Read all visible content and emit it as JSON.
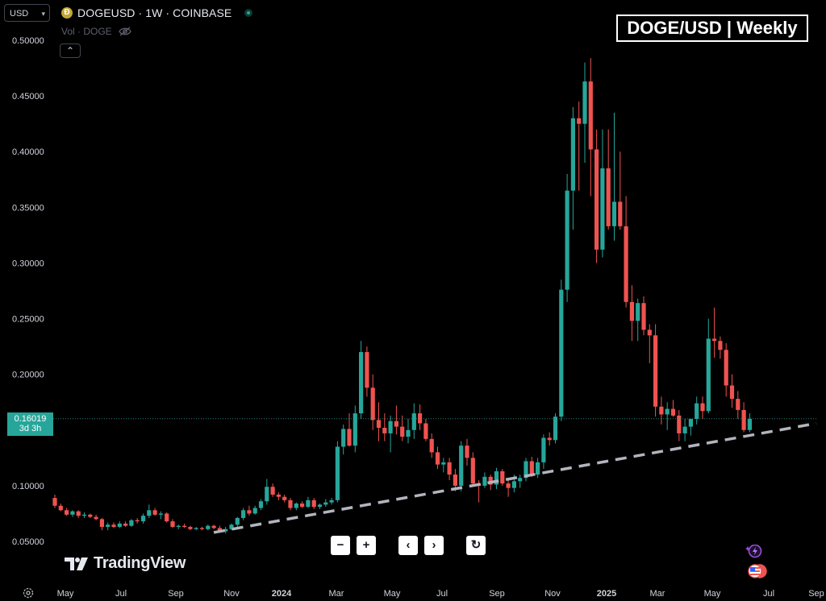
{
  "header": {
    "currency": "USD",
    "symbol_title": "DOGEUSD · 1W · COINBASE",
    "coin_glyph": "Ð",
    "volume_label": "Vol · DOGE",
    "collapse_glyph": "⌃"
  },
  "watermark_title": "DOGE/USD | Weekly",
  "last_price": {
    "price": "0.16019",
    "countdown": "3d 3h"
  },
  "logo_text": "TradingView",
  "controls": {
    "zoom_out": "−",
    "zoom_in": "+",
    "scroll_left": "‹",
    "scroll_right": "›",
    "reset": "↻"
  },
  "colors": {
    "up": "#26a69a",
    "down": "#ef5350",
    "background": "#000000",
    "axis_text": "#d1d4dc",
    "trendline": "#b2b5be"
  },
  "chart_data": {
    "type": "candlestick",
    "interval": "1W",
    "y_tick_labels": [
      "0.05000",
      "0.10000",
      "0.15000",
      "0.20000",
      "0.25000",
      "0.30000",
      "0.35000",
      "0.40000",
      "0.45000",
      "0.50000"
    ],
    "x_tick_labels": [
      "May",
      "Jul",
      "Sep",
      "Nov",
      "2024",
      "Mar",
      "May",
      "Jul",
      "Sep",
      "Nov",
      "2025",
      "Mar",
      "May",
      "Jul",
      "Sep"
    ],
    "ylim": [
      0.03,
      0.51
    ],
    "grid": false,
    "candles": [
      [
        0.089,
        0.092,
        0.08,
        0.082
      ],
      [
        0.082,
        0.084,
        0.077,
        0.078
      ],
      [
        0.078,
        0.08,
        0.073,
        0.074
      ],
      [
        0.074,
        0.078,
        0.072,
        0.077
      ],
      [
        0.077,
        0.078,
        0.071,
        0.073
      ],
      [
        0.073,
        0.076,
        0.071,
        0.074
      ],
      [
        0.074,
        0.075,
        0.071,
        0.072
      ],
      [
        0.072,
        0.074,
        0.069,
        0.07
      ],
      [
        0.07,
        0.071,
        0.06,
        0.063
      ],
      [
        0.063,
        0.067,
        0.06,
        0.065
      ],
      [
        0.065,
        0.067,
        0.062,
        0.063
      ],
      [
        0.063,
        0.068,
        0.062,
        0.066
      ],
      [
        0.066,
        0.068,
        0.063,
        0.064
      ],
      [
        0.064,
        0.07,
        0.063,
        0.069
      ],
      [
        0.069,
        0.071,
        0.066,
        0.068
      ],
      [
        0.068,
        0.075,
        0.066,
        0.073
      ],
      [
        0.073,
        0.083,
        0.071,
        0.078
      ],
      [
        0.078,
        0.08,
        0.073,
        0.074
      ],
      [
        0.074,
        0.077,
        0.07,
        0.075
      ],
      [
        0.075,
        0.076,
        0.067,
        0.068
      ],
      [
        0.068,
        0.07,
        0.062,
        0.063
      ],
      [
        0.063,
        0.065,
        0.061,
        0.064
      ],
      [
        0.064,
        0.066,
        0.062,
        0.063
      ],
      [
        0.063,
        0.064,
        0.06,
        0.061
      ],
      [
        0.061,
        0.063,
        0.06,
        0.062
      ],
      [
        0.062,
        0.063,
        0.06,
        0.061
      ],
      [
        0.061,
        0.065,
        0.06,
        0.064
      ],
      [
        0.064,
        0.065,
        0.061,
        0.062
      ],
      [
        0.062,
        0.064,
        0.058,
        0.059
      ],
      [
        0.059,
        0.063,
        0.057,
        0.061
      ],
      [
        0.061,
        0.066,
        0.06,
        0.065
      ],
      [
        0.065,
        0.072,
        0.063,
        0.071
      ],
      [
        0.071,
        0.08,
        0.069,
        0.078
      ],
      [
        0.078,
        0.082,
        0.073,
        0.075
      ],
      [
        0.075,
        0.082,
        0.074,
        0.08
      ],
      [
        0.08,
        0.088,
        0.078,
        0.086
      ],
      [
        0.086,
        0.106,
        0.083,
        0.099
      ],
      [
        0.099,
        0.102,
        0.09,
        0.092
      ],
      [
        0.092,
        0.094,
        0.087,
        0.09
      ],
      [
        0.09,
        0.092,
        0.085,
        0.087
      ],
      [
        0.087,
        0.089,
        0.078,
        0.08
      ],
      [
        0.08,
        0.085,
        0.078,
        0.084
      ],
      [
        0.084,
        0.086,
        0.08,
        0.081
      ],
      [
        0.081,
        0.09,
        0.08,
        0.087
      ],
      [
        0.087,
        0.089,
        0.079,
        0.081
      ],
      [
        0.081,
        0.084,
        0.079,
        0.083
      ],
      [
        0.083,
        0.088,
        0.081,
        0.085
      ],
      [
        0.085,
        0.089,
        0.083,
        0.087
      ],
      [
        0.087,
        0.14,
        0.085,
        0.135
      ],
      [
        0.135,
        0.155,
        0.128,
        0.151
      ],
      [
        0.151,
        0.165,
        0.135,
        0.136
      ],
      [
        0.136,
        0.172,
        0.13,
        0.165
      ],
      [
        0.165,
        0.23,
        0.16,
        0.22
      ],
      [
        0.22,
        0.225,
        0.18,
        0.188
      ],
      [
        0.188,
        0.2,
        0.15,
        0.159
      ],
      [
        0.159,
        0.175,
        0.14,
        0.152
      ],
      [
        0.152,
        0.165,
        0.14,
        0.147
      ],
      [
        0.147,
        0.163,
        0.13,
        0.158
      ],
      [
        0.158,
        0.172,
        0.146,
        0.153
      ],
      [
        0.153,
        0.163,
        0.14,
        0.144
      ],
      [
        0.144,
        0.16,
        0.138,
        0.15
      ],
      [
        0.15,
        0.174,
        0.142,
        0.165
      ],
      [
        0.165,
        0.173,
        0.15,
        0.156
      ],
      [
        0.156,
        0.16,
        0.14,
        0.142
      ],
      [
        0.142,
        0.147,
        0.125,
        0.13
      ],
      [
        0.13,
        0.135,
        0.115,
        0.119
      ],
      [
        0.119,
        0.125,
        0.112,
        0.121
      ],
      [
        0.121,
        0.125,
        0.105,
        0.11
      ],
      [
        0.11,
        0.115,
        0.095,
        0.1
      ],
      [
        0.1,
        0.14,
        0.095,
        0.136
      ],
      [
        0.136,
        0.142,
        0.118,
        0.125
      ],
      [
        0.125,
        0.13,
        0.1,
        0.102
      ],
      [
        0.102,
        0.105,
        0.085,
        0.1
      ],
      [
        0.1,
        0.112,
        0.098,
        0.108
      ],
      [
        0.108,
        0.11,
        0.096,
        0.101
      ],
      [
        0.101,
        0.116,
        0.097,
        0.113
      ],
      [
        0.113,
        0.115,
        0.1,
        0.102
      ],
      [
        0.102,
        0.105,
        0.09,
        0.098
      ],
      [
        0.098,
        0.11,
        0.094,
        0.104
      ],
      [
        0.104,
        0.11,
        0.098,
        0.107
      ],
      [
        0.107,
        0.125,
        0.104,
        0.122
      ],
      [
        0.122,
        0.126,
        0.108,
        0.11
      ],
      [
        0.11,
        0.125,
        0.107,
        0.121
      ],
      [
        0.121,
        0.146,
        0.115,
        0.143
      ],
      [
        0.143,
        0.148,
        0.136,
        0.141
      ],
      [
        0.141,
        0.165,
        0.138,
        0.162
      ],
      [
        0.162,
        0.285,
        0.158,
        0.276
      ],
      [
        0.276,
        0.38,
        0.265,
        0.365
      ],
      [
        0.365,
        0.44,
        0.33,
        0.43
      ],
      [
        0.43,
        0.445,
        0.365,
        0.425
      ],
      [
        0.425,
        0.48,
        0.39,
        0.463
      ],
      [
        0.463,
        0.484,
        0.36,
        0.402
      ],
      [
        0.402,
        0.42,
        0.3,
        0.312
      ],
      [
        0.312,
        0.42,
        0.305,
        0.385
      ],
      [
        0.385,
        0.42,
        0.33,
        0.333
      ],
      [
        0.333,
        0.435,
        0.32,
        0.355
      ],
      [
        0.355,
        0.4,
        0.33,
        0.333
      ],
      [
        0.333,
        0.36,
        0.26,
        0.265
      ],
      [
        0.265,
        0.28,
        0.23,
        0.248
      ],
      [
        0.248,
        0.268,
        0.23,
        0.264
      ],
      [
        0.264,
        0.27,
        0.235,
        0.24
      ],
      [
        0.24,
        0.245,
        0.21,
        0.235
      ],
      [
        0.235,
        0.245,
        0.162,
        0.171
      ],
      [
        0.171,
        0.18,
        0.155,
        0.164
      ],
      [
        0.164,
        0.175,
        0.15,
        0.169
      ],
      [
        0.169,
        0.177,
        0.162,
        0.163
      ],
      [
        0.163,
        0.168,
        0.14,
        0.147
      ],
      [
        0.147,
        0.16,
        0.14,
        0.153
      ],
      [
        0.153,
        0.16,
        0.145,
        0.16
      ],
      [
        0.16,
        0.18,
        0.155,
        0.174
      ],
      [
        0.174,
        0.18,
        0.16,
        0.167
      ],
      [
        0.167,
        0.25,
        0.165,
        0.232
      ],
      [
        0.232,
        0.26,
        0.215,
        0.23
      ],
      [
        0.23,
        0.234,
        0.214,
        0.222
      ],
      [
        0.222,
        0.228,
        0.18,
        0.19
      ],
      [
        0.19,
        0.2,
        0.17,
        0.178
      ],
      [
        0.178,
        0.185,
        0.16,
        0.168
      ],
      [
        0.168,
        0.175,
        0.148,
        0.15
      ],
      [
        0.15,
        0.165,
        0.148,
        0.16
      ]
    ],
    "trendline": {
      "style": "dashed",
      "start": [
        0.052,
        0.08
      ],
      "end": [
        0.143,
        0.156
      ]
    },
    "last_price_line": 0.16019
  }
}
